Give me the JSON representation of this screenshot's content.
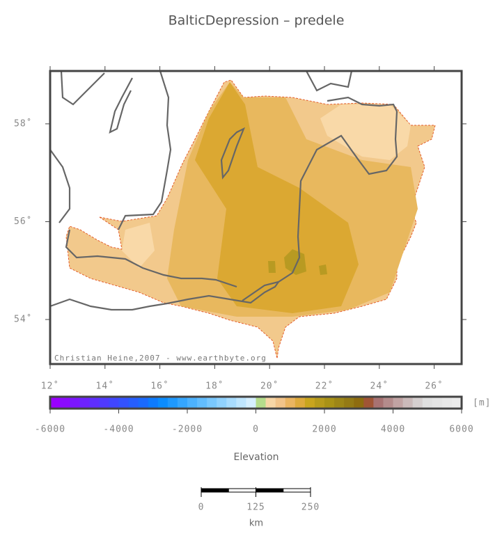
{
  "title": "BalticDepression – predele",
  "map": {
    "xlim": [
      12,
      27
    ],
    "ylim": [
      53.09,
      59.08
    ],
    "xticks": [
      {
        "value": 12,
        "label": "12˚"
      },
      {
        "value": 14,
        "label": "14˚"
      },
      {
        "value": 16,
        "label": "16˚"
      },
      {
        "value": 18,
        "label": "18˚"
      },
      {
        "value": 20,
        "label": "20˚"
      },
      {
        "value": 22,
        "label": "22˚"
      },
      {
        "value": 24,
        "label": "24˚"
      },
      {
        "value": 26,
        "label": "26˚"
      }
    ],
    "yticks": [
      {
        "value": 54,
        "label": "54˚"
      },
      {
        "value": 56,
        "label": "56˚"
      },
      {
        "value": 58,
        "label": "58˚"
      }
    ],
    "credit": "Christian Heine,2007 - www.earthbyte.org"
  },
  "colorbar": {
    "xlim": [
      -6000,
      6000
    ],
    "ticks": [
      -6000,
      -4000,
      -2000,
      0,
      2000,
      4000,
      6000
    ],
    "unit": "[m]",
    "label": "Elevation",
    "colors": [
      "#9900ff",
      "#8a0bff",
      "#7b16ff",
      "#6d22ff",
      "#5e2eff",
      "#4f3aff",
      "#4046ff",
      "#3352ff",
      "#265eff",
      "#1a6aff",
      "#0d7bff",
      "#0b8cff",
      "#1e99ff",
      "#35a6ff",
      "#4cb2ff",
      "#62bdff",
      "#79c8ff",
      "#90d2ff",
      "#a8dcff",
      "#bfe6ff",
      "#d6efff",
      "#b5dc8c",
      "#f7d6a6",
      "#f2c48a",
      "#ebb561",
      "#deaa3c",
      "#c9a51e",
      "#b79b1b",
      "#a99216",
      "#9d8617",
      "#947a15",
      "#8e6c10",
      "#a05535",
      "#a87272",
      "#b48b8b",
      "#c1a3a3",
      "#cbbaba",
      "#d6d0d0",
      "#e0e0e0",
      "#e4e4e4",
      "#e8e8e8",
      "#ebebeb"
    ]
  },
  "scalebar": {
    "xlim": [
      0,
      250
    ],
    "ticks": [
      0,
      125,
      250
    ],
    "unit": "km"
  }
}
